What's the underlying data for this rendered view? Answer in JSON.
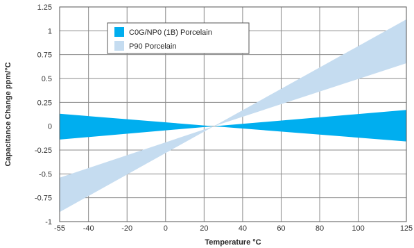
{
  "chart_data": {
    "type": "area",
    "title": "",
    "xlabel": "Temperature °C",
    "ylabel": "Capacitance Change ppm/°C",
    "xlim": [
      -55,
      125
    ],
    "ylim": [
      -1,
      1.25
    ],
    "x_ticks": [
      -55,
      -40,
      -20,
      0,
      20,
      40,
      60,
      80,
      100,
      125
    ],
    "x_tick_labels": [
      "-55",
      "-40",
      "-20",
      "0",
      "20",
      "40",
      "60",
      "80",
      "100",
      "125"
    ],
    "y_ticks": [
      -1,
      -0.75,
      -0.5,
      -0.25,
      0,
      0.25,
      0.5,
      0.75,
      1,
      1.25
    ],
    "y_tick_labels": [
      "-1",
      "-0.75",
      "-0.5",
      "-0.25",
      "0",
      "0.25",
      "0.5",
      "0.75",
      "1",
      "1.25"
    ],
    "grid": true,
    "legend_position": "top-left",
    "series": [
      {
        "name": "P90 Porcelain",
        "color": "#c5dcf0",
        "polygon": [
          [
            -55,
            -0.54
          ],
          [
            25,
            0
          ],
          [
            125,
            1.12
          ],
          [
            125,
            0.66
          ],
          [
            25,
            0
          ],
          [
            -55,
            -0.9
          ]
        ]
      },
      {
        "name": "C0G/NP0 (1B) Porcelain",
        "color": "#00aeef",
        "polygon": [
          [
            -55,
            0.13
          ],
          [
            25,
            0
          ],
          [
            125,
            0.17
          ],
          [
            125,
            -0.16
          ],
          [
            25,
            0
          ],
          [
            -55,
            -0.14
          ]
        ]
      }
    ]
  }
}
